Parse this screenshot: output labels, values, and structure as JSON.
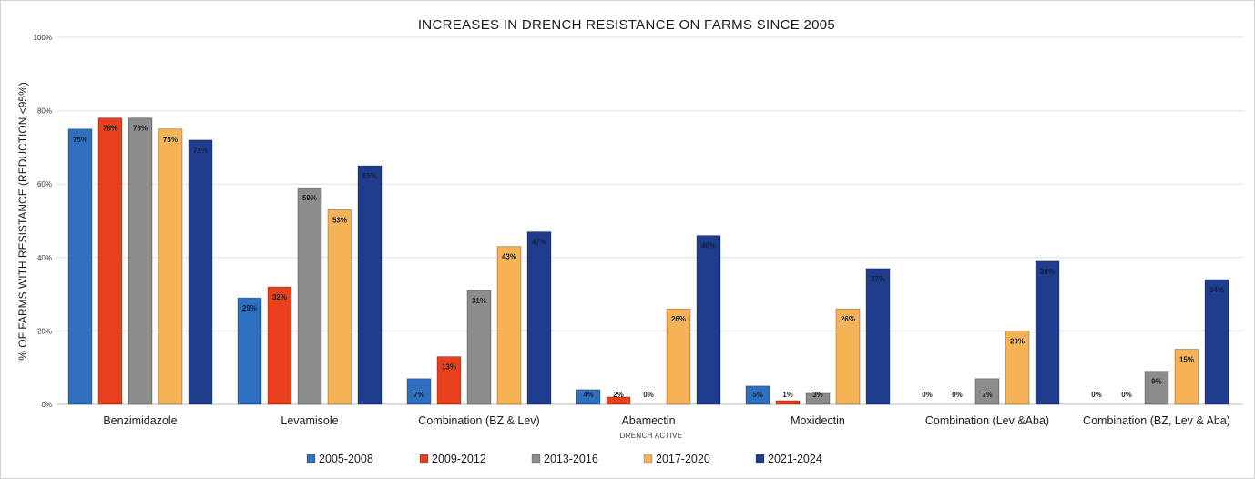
{
  "chart_data": {
    "type": "bar",
    "title": "INCREASES IN DRENCH RESISTANCE ON FARMS SINCE 2005",
    "xlabel": "DRENCH ACTIVE",
    "ylabel": "% OF FARMS WITH RESISTANCE (REDUCTION <95%)",
    "ylim": [
      0,
      100
    ],
    "yticks": [
      "0%",
      "20%",
      "40%",
      "60%",
      "80%",
      "100%"
    ],
    "grid": true,
    "legend_position": "bottom",
    "categories": [
      "Benzimidazole",
      "Levamisole",
      "Combination (BZ & Lev)",
      "Abamectin",
      "Moxidectin",
      "Combination (Lev &Aba)",
      "Combination (BZ, Lev & Aba)"
    ],
    "series": [
      {
        "name": "2005-2008",
        "color": "#2e6fc0",
        "values": [
          75,
          29,
          7,
          4,
          5,
          0,
          0
        ],
        "labels": [
          "75%",
          "29%",
          "7%",
          "4%",
          "5%",
          "0%",
          "0%"
        ]
      },
      {
        "name": "2009-2012",
        "color": "#e8401c",
        "values": [
          78,
          32,
          13,
          2,
          1,
          0,
          0
        ],
        "labels": [
          "78%",
          "32%",
          "13%",
          "2%",
          "1%",
          "0%",
          "0%"
        ]
      },
      {
        "name": "2013-2016",
        "color": "#8c8c8c",
        "values": [
          78,
          59,
          31,
          0,
          3,
          7,
          9
        ],
        "labels": [
          "78%",
          "59%",
          "31%",
          "0%",
          "3%",
          "7%",
          "9%"
        ]
      },
      {
        "name": "2017-2020",
        "color": "#f5b355",
        "values": [
          75,
          53,
          43,
          26,
          26,
          20,
          15
        ],
        "labels": [
          "75%",
          "53%",
          "43%",
          "26%",
          "26%",
          "20%",
          "15%"
        ]
      },
      {
        "name": "2021-2024",
        "color": "#1f3c8f",
        "values": [
          72,
          65,
          47,
          46,
          37,
          39,
          34
        ],
        "labels": [
          "72%",
          "65%",
          "47%",
          "46%",
          "37%",
          "39%",
          "34%"
        ]
      }
    ]
  }
}
